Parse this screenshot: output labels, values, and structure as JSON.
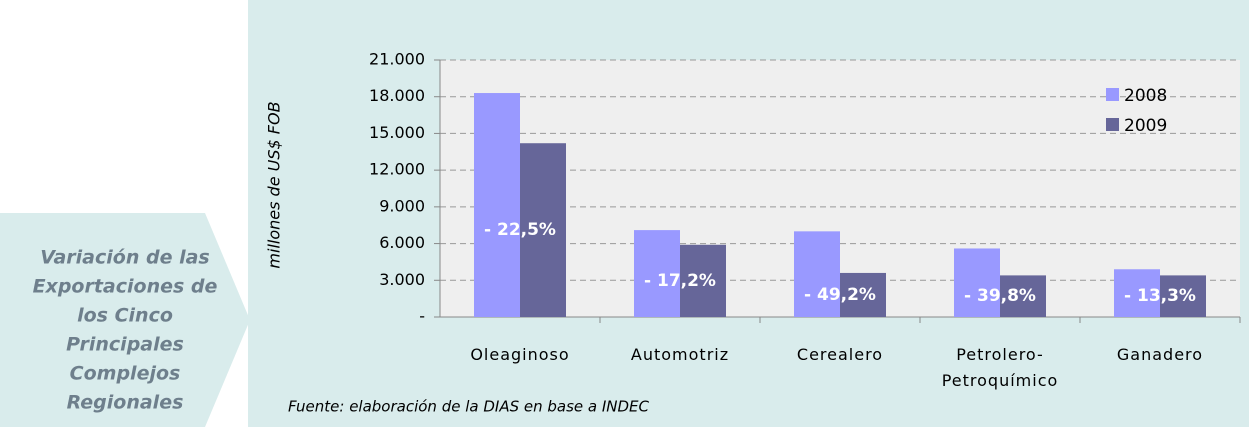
{
  "side_panel": {
    "lines": [
      "Variación de las",
      "Exportaciones de",
      "los Cinco",
      "Principales",
      "Complejos",
      "Regionales"
    ]
  },
  "chart_data": {
    "type": "bar",
    "ylabel": "millones de US$ FOB",
    "footnote": "Fuente: elaboración de la DIAS en base a INDEC",
    "categories": [
      "Oleaginoso",
      "Automotriz",
      "Cerealero",
      "Petrolero-\nPetroquímico",
      "Ganadero"
    ],
    "series": [
      {
        "name": "2008",
        "color": "#9999ff",
        "values": [
          18300,
          7100,
          7000,
          5600,
          3900
        ]
      },
      {
        "name": "2009",
        "color": "#666699",
        "values": [
          14200,
          5900,
          3600,
          3400,
          3400
        ]
      }
    ],
    "change_labels": [
      "- 22,5%",
      "- 17,2%",
      "- 49,2%",
      "- 39,8%",
      "- 13,3%"
    ],
    "ylim": [
      0,
      21000
    ],
    "yticks": [
      {
        "value": 0,
        "label": "-"
      },
      {
        "value": 3000,
        "label": "3.000"
      },
      {
        "value": 6000,
        "label": "6.000"
      },
      {
        "value": 9000,
        "label": "9.000"
      },
      {
        "value": 12000,
        "label": "12.000"
      },
      {
        "value": 15000,
        "label": "15.000"
      },
      {
        "value": 18000,
        "label": "18.000"
      },
      {
        "value": 21000,
        "label": "21.000"
      }
    ],
    "grid": true,
    "legend": "upper right"
  }
}
